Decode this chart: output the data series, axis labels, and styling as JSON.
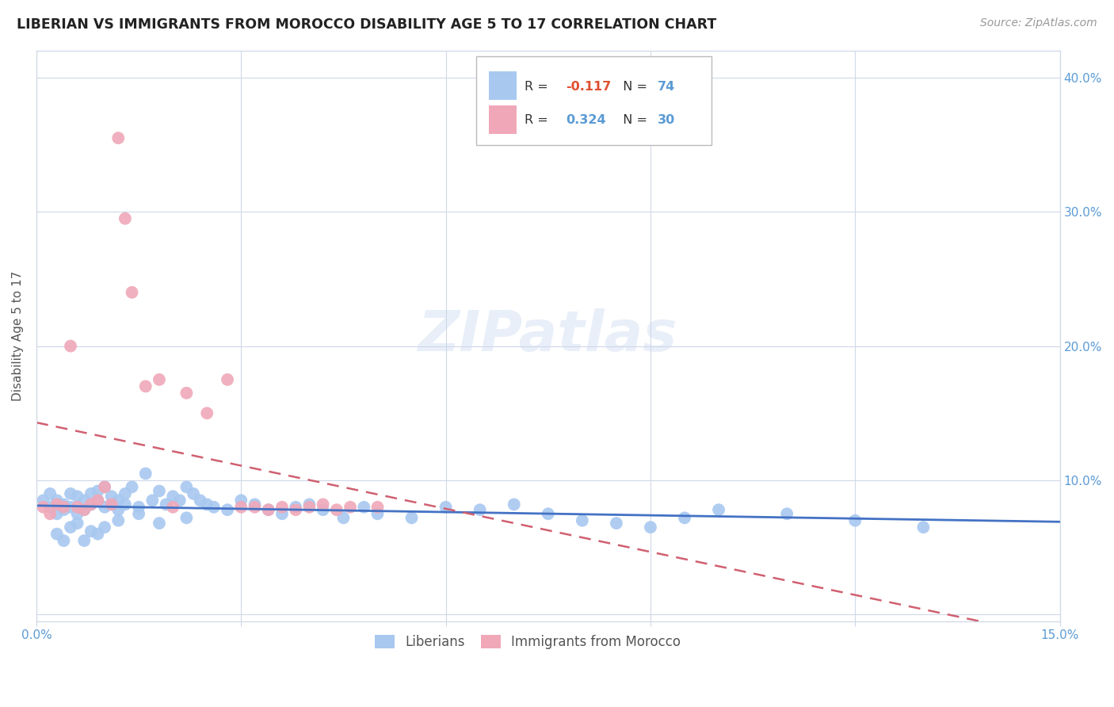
{
  "title": "LIBERIAN VS IMMIGRANTS FROM MOROCCO DISABILITY AGE 5 TO 17 CORRELATION CHART",
  "source": "Source: ZipAtlas.com",
  "ylabel": "Disability Age 5 to 17",
  "xmin": 0.0,
  "xmax": 0.15,
  "ymin": -0.005,
  "ymax": 0.42,
  "liberian_R": -0.117,
  "liberian_N": 74,
  "morocco_R": 0.324,
  "morocco_N": 30,
  "liberian_color": "#a8c8f0",
  "morocco_color": "#f0a8b8",
  "trend_liberian_color": "#4472c4",
  "trend_morocco_color": "#d06070",
  "background_color": "#ffffff",
  "grid_color": "#d0d8e8",
  "watermark": "ZIPatlas",
  "right_tick_color": "#5b9bd5",
  "liberian_x": [
    0.001,
    0.002,
    0.002,
    0.003,
    0.003,
    0.004,
    0.004,
    0.005,
    0.005,
    0.006,
    0.006,
    0.007,
    0.007,
    0.008,
    0.008,
    0.009,
    0.009,
    0.01,
    0.01,
    0.011,
    0.011,
    0.012,
    0.012,
    0.013,
    0.013,
    0.014,
    0.015,
    0.016,
    0.017,
    0.018,
    0.019,
    0.02,
    0.021,
    0.022,
    0.023,
    0.024,
    0.025,
    0.026,
    0.028,
    0.03,
    0.032,
    0.034,
    0.036,
    0.038,
    0.04,
    0.042,
    0.045,
    0.048,
    0.05,
    0.055,
    0.06,
    0.065,
    0.07,
    0.075,
    0.08,
    0.085,
    0.09,
    0.095,
    0.1,
    0.11,
    0.12,
    0.13,
    0.003,
    0.004,
    0.005,
    0.006,
    0.007,
    0.008,
    0.009,
    0.01,
    0.012,
    0.015,
    0.018,
    0.022
  ],
  "liberian_y": [
    0.085,
    0.08,
    0.09,
    0.075,
    0.085,
    0.082,
    0.078,
    0.09,
    0.08,
    0.088,
    0.075,
    0.085,
    0.078,
    0.09,
    0.082,
    0.085,
    0.092,
    0.08,
    0.095,
    0.088,
    0.082,
    0.085,
    0.078,
    0.09,
    0.082,
    0.095,
    0.08,
    0.105,
    0.085,
    0.092,
    0.082,
    0.088,
    0.085,
    0.095,
    0.09,
    0.085,
    0.082,
    0.08,
    0.078,
    0.085,
    0.082,
    0.078,
    0.075,
    0.08,
    0.082,
    0.078,
    0.072,
    0.08,
    0.075,
    0.072,
    0.08,
    0.078,
    0.082,
    0.075,
    0.07,
    0.068,
    0.065,
    0.072,
    0.078,
    0.075,
    0.07,
    0.065,
    0.06,
    0.055,
    0.065,
    0.068,
    0.055,
    0.062,
    0.06,
    0.065,
    0.07,
    0.075,
    0.068,
    0.072
  ],
  "morocco_x": [
    0.001,
    0.002,
    0.003,
    0.004,
    0.005,
    0.006,
    0.007,
    0.008,
    0.009,
    0.01,
    0.011,
    0.012,
    0.013,
    0.014,
    0.016,
    0.018,
    0.02,
    0.022,
    0.025,
    0.028,
    0.03,
    0.032,
    0.034,
    0.036,
    0.038,
    0.04,
    0.042,
    0.044,
    0.046,
    0.05
  ],
  "morocco_y": [
    0.08,
    0.075,
    0.082,
    0.08,
    0.2,
    0.08,
    0.078,
    0.082,
    0.085,
    0.095,
    0.082,
    0.355,
    0.295,
    0.24,
    0.17,
    0.175,
    0.08,
    0.165,
    0.15,
    0.175,
    0.08,
    0.08,
    0.078,
    0.08,
    0.078,
    0.08,
    0.082,
    0.078,
    0.08,
    0.08
  ]
}
